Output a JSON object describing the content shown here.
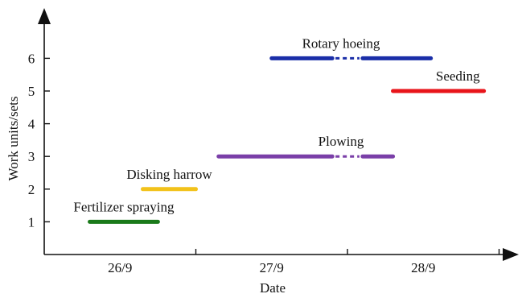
{
  "chart_data": {
    "type": "gantt",
    "xlabel": "Date",
    "ylabel": "Work units/sets",
    "x_categories": [
      "26/9",
      "27/9",
      "28/9"
    ],
    "x_range_days": [
      0,
      3
    ],
    "y_ticks": [
      1,
      2,
      3,
      4,
      5,
      6
    ],
    "y_range": [
      0,
      7
    ],
    "tasks": [
      {
        "label": "Fertilizer spraying",
        "y": 1,
        "color": "#1a7a1a",
        "segments": [
          [
            0.3,
            0.75
          ]
        ],
        "dotted": []
      },
      {
        "label": "Disking harrow",
        "y": 2,
        "color": "#f2c21a",
        "segments": [
          [
            0.65,
            1.0
          ]
        ],
        "dotted": []
      },
      {
        "label": "Plowing",
        "y": 3,
        "color": "#7a3fa8",
        "segments": [
          [
            1.15,
            1.9
          ],
          [
            2.1,
            2.3
          ]
        ],
        "dotted": [
          [
            1.9,
            2.1
          ]
        ]
      },
      {
        "label": "Rotary hoeing",
        "y": 6,
        "color": "#1a2ea8",
        "segments": [
          [
            1.5,
            1.9
          ],
          [
            2.1,
            2.55
          ]
        ],
        "dotted": [
          [
            1.9,
            2.1
          ]
        ]
      },
      {
        "label": "Seeding",
        "y": 5,
        "color": "#e8141a",
        "segments": [
          [
            2.3,
            2.9
          ]
        ],
        "dotted": []
      }
    ]
  }
}
